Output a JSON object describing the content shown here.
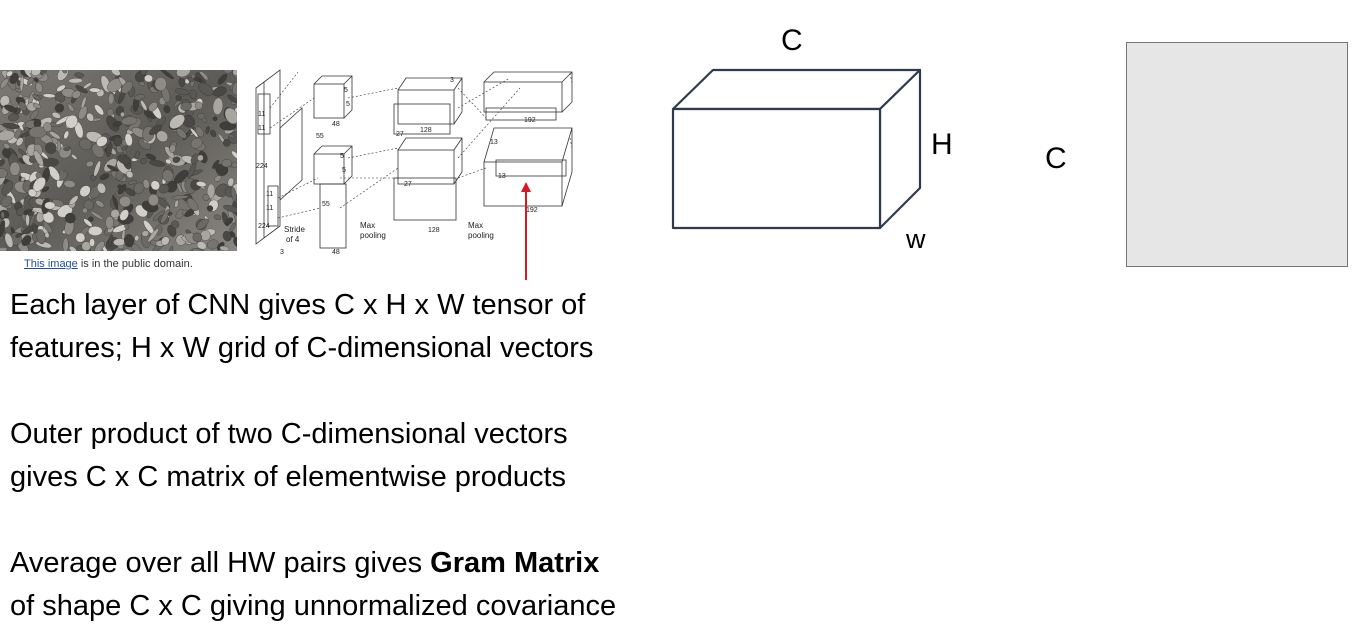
{
  "image_credit": {
    "link_text": "This image",
    "rest": " is in the public domain."
  },
  "cnn_labels": {
    "input_h": "224",
    "input_w": "224",
    "input_d": "3",
    "kernel1_a": "11",
    "kernel1_b": "11",
    "kernel_in_a": "11",
    "kernel_in_b": "11",
    "stride": "Stride",
    "stride_of": "of 4",
    "l1_a": "55",
    "l1_b": "55",
    "l1_d": "48",
    "l1_d_top": "48",
    "k5_a": "5",
    "k5_b": "5",
    "k5_c": "5",
    "k5_d": "5",
    "l2_a": "27",
    "l2_b": "27",
    "l2_d": "128",
    "l2_d_bottom": "128",
    "k3": "3",
    "l3_a": "13",
    "l3_b": "13",
    "l3_d": "192",
    "l3_d_bottom": "192",
    "pool1": "Max",
    "pool1b": "pooling",
    "pool2": "Max",
    "pool2b": "pooling"
  },
  "tensor_labels": {
    "c_top": "C",
    "h": "H",
    "w": "w",
    "c_side": "C"
  },
  "paragraphs": [
    {
      "line1": "Each layer of CNN gives C x H x W tensor of",
      "line2": "features; H x W grid of C-dimensional vectors"
    },
    {
      "line1": "Outer product of two C-dimensional vectors",
      "line2": "gives C x C matrix of elementwise products"
    },
    {
      "line1_pre": "Average over all HW pairs gives ",
      "line1_bold": "Gram Matrix",
      "line2": "of shape C x C  giving unnormalized covariance"
    }
  ],
  "colors": {
    "arrow": "#d71920",
    "box_stroke": "#2e3b4e",
    "gram_fill": "#e6e6e6"
  }
}
